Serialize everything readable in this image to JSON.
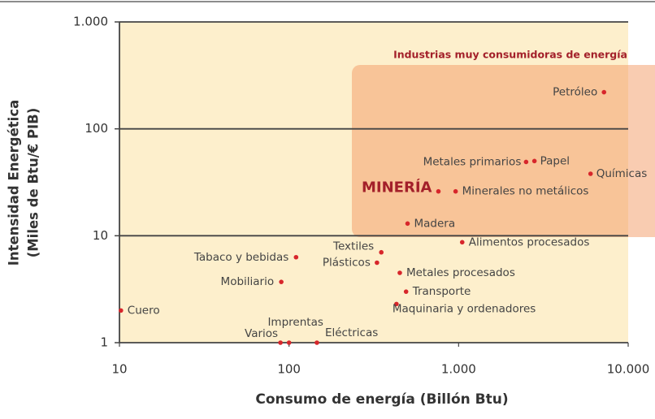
{
  "chart_data": {
    "type": "scatter",
    "annotation": "Industrias muy consumidoras de energía",
    "xlabel": "Consumo de energía (Billón Btu)",
    "ylabel": [
      "Intensidad Energética",
      "(Miles de Btu/€ PIB)"
    ],
    "xscale": "log",
    "yscale": "log",
    "xlim": [
      10,
      10000
    ],
    "ylim": [
      1,
      1000
    ],
    "xticks": [
      10,
      100,
      {
        "value": 1000,
        "label": "1.000"
      },
      {
        "value": 10000,
        "label": "10.000"
      }
    ],
    "yticks": [
      1,
      10,
      100,
      {
        "value": 1000,
        "label": "1.000"
      }
    ],
    "grid": true,
    "color": "#d7262b",
    "labels": [
      "Petróleo",
      "Metales primarios",
      "Papel",
      "Químicas",
      "MINERÍA",
      "Minerales no metálicos",
      "Madera",
      "Alimentos procesados",
      "Textiles",
      "Plásticos",
      "Tabaco y bebidas",
      "Metales procesados",
      "Mobiliario",
      "Transporte",
      "Maquinaria y ordenadores",
      "Cuero",
      "Varios",
      "Imprentas",
      "Eléctricas"
    ],
    "x": [
      7200,
      2500,
      2800,
      6000,
      760,
      960,
      500,
      1050,
      350,
      330,
      110,
      450,
      90,
      490,
      430,
      10.2,
      89,
      100,
      146
    ],
    "values": [
      220,
      49,
      50,
      38,
      26,
      26,
      13,
      8.7,
      7,
      5.6,
      6.3,
      4.5,
      3.7,
      3,
      2.3,
      2,
      1,
      1,
      1
    ]
  }
}
